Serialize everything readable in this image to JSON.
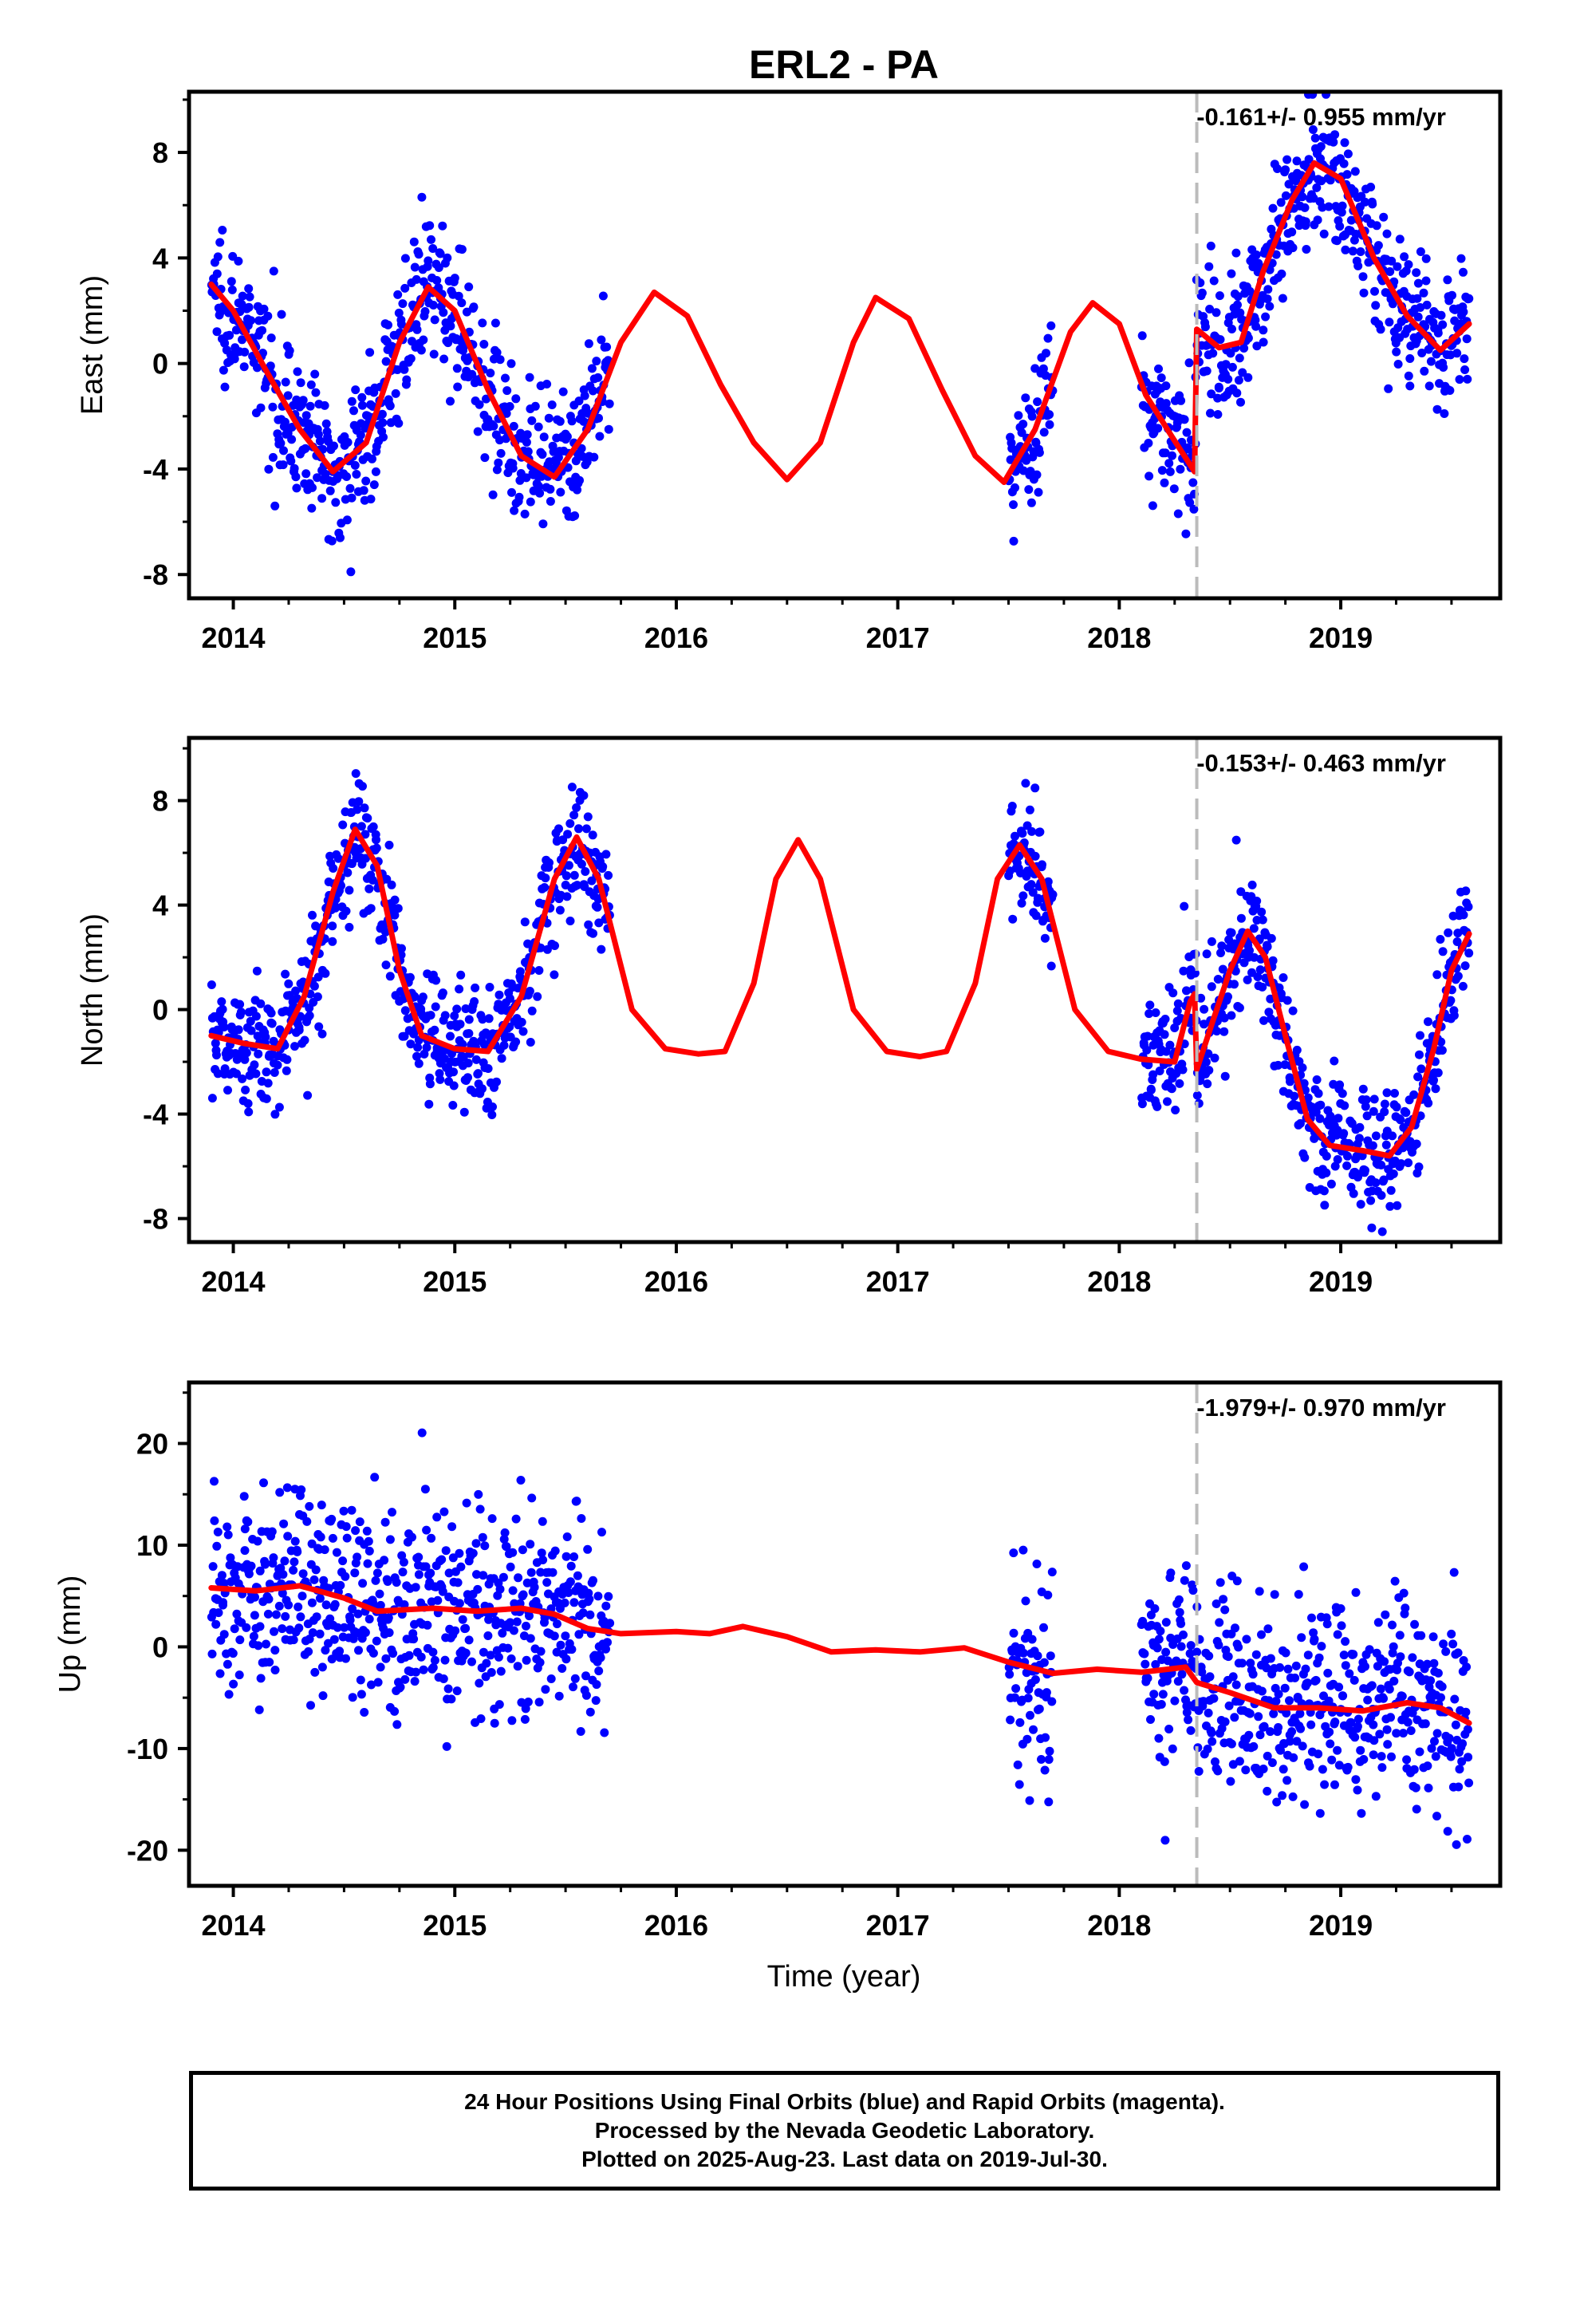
{
  "chart_data": {
    "type": "scatter",
    "title": "ERL2 - PA",
    "xlabel": "Time (year)",
    "colors": {
      "points": "#0000ff",
      "model": "#ff0000",
      "offset_line": "#bbbbbb",
      "frame": "#000000"
    },
    "xlim": [
      2013.8,
      2019.72
    ],
    "x_ticks": [
      "2014",
      "2015",
      "2016",
      "2017",
      "2018",
      "2019"
    ],
    "offset_epoch": 2018.35,
    "data_spans": [
      [
        2013.9,
        2015.7
      ],
      [
        2017.5,
        2017.7
      ],
      [
        2018.1,
        2019.58
      ]
    ],
    "grid": false,
    "panels": [
      {
        "name": "east",
        "ylabel": "East (mm)",
        "ylim": [
          -8.9,
          10.3
        ],
        "y_ticks": [
          "-8",
          "-4",
          "0",
          "4",
          "8"
        ],
        "y_tick_values": [
          -8,
          -4,
          0,
          4,
          8
        ],
        "rate": "-0.161+/- 0.955 mm/yr",
        "noise_sd": 1.3,
        "model": [
          [
            2013.9,
            3.0
          ],
          [
            2014.0,
            2.0
          ],
          [
            2014.15,
            -0.3
          ],
          [
            2014.3,
            -2.5
          ],
          [
            2014.45,
            -4.1
          ],
          [
            2014.6,
            -3.0
          ],
          [
            2014.75,
            0.8
          ],
          [
            2014.88,
            2.9
          ],
          [
            2015.0,
            2.0
          ],
          [
            2015.15,
            -1.0
          ],
          [
            2015.3,
            -3.5
          ],
          [
            2015.45,
            -4.3
          ],
          [
            2015.6,
            -2.5
          ],
          [
            2015.75,
            0.8
          ],
          [
            2015.9,
            2.7
          ],
          [
            2016.05,
            1.8
          ],
          [
            2016.2,
            -0.8
          ],
          [
            2016.35,
            -3.0
          ],
          [
            2016.5,
            -4.4
          ],
          [
            2016.65,
            -3.0
          ],
          [
            2016.8,
            0.8
          ],
          [
            2016.9,
            2.5
          ],
          [
            2017.05,
            1.7
          ],
          [
            2017.2,
            -1.0
          ],
          [
            2017.35,
            -3.5
          ],
          [
            2017.48,
            -4.5
          ],
          [
            2017.62,
            -2.5
          ],
          [
            2017.78,
            1.2
          ],
          [
            2017.88,
            2.3
          ],
          [
            2018.0,
            1.5
          ],
          [
            2018.12,
            -1.2
          ],
          [
            2018.24,
            -2.8
          ],
          [
            2018.34,
            -4.1
          ],
          [
            2018.35,
            1.3
          ],
          [
            2018.45,
            0.6
          ],
          [
            2018.55,
            0.8
          ],
          [
            2018.65,
            3.5
          ],
          [
            2018.78,
            6.2
          ],
          [
            2018.88,
            7.6
          ],
          [
            2019.0,
            7.0
          ],
          [
            2019.15,
            4.0
          ],
          [
            2019.3,
            1.8
          ],
          [
            2019.45,
            0.5
          ],
          [
            2019.58,
            1.5
          ]
        ]
      },
      {
        "name": "north",
        "ylabel": "North (mm)",
        "ylim": [
          -8.9,
          10.4
        ],
        "y_ticks": [
          "-8",
          "-4",
          "0",
          "4",
          "8"
        ],
        "y_tick_values": [
          -8,
          -4,
          0,
          4,
          8
        ],
        "rate": "-0.153+/- 0.463 mm/yr",
        "noise_sd": 1.2,
        "model": [
          [
            2013.9,
            -1.0
          ],
          [
            2014.05,
            -1.3
          ],
          [
            2014.2,
            -1.5
          ],
          [
            2014.32,
            0.5
          ],
          [
            2014.45,
            4.5
          ],
          [
            2014.55,
            6.9
          ],
          [
            2014.65,
            5.5
          ],
          [
            2014.75,
            1.5
          ],
          [
            2014.85,
            -1.0
          ],
          [
            2015.0,
            -1.5
          ],
          [
            2015.15,
            -1.6
          ],
          [
            2015.3,
            0.5
          ],
          [
            2015.45,
            5.0
          ],
          [
            2015.55,
            6.6
          ],
          [
            2015.65,
            5.0
          ],
          [
            2015.8,
            0.0
          ],
          [
            2015.95,
            -1.5
          ],
          [
            2016.1,
            -1.7
          ],
          [
            2016.22,
            -1.6
          ],
          [
            2016.35,
            1.0
          ],
          [
            2016.45,
            5.0
          ],
          [
            2016.55,
            6.5
          ],
          [
            2016.65,
            5.0
          ],
          [
            2016.8,
            0.0
          ],
          [
            2016.95,
            -1.6
          ],
          [
            2017.1,
            -1.8
          ],
          [
            2017.22,
            -1.6
          ],
          [
            2017.35,
            1.0
          ],
          [
            2017.45,
            5.0
          ],
          [
            2017.55,
            6.3
          ],
          [
            2017.65,
            5.0
          ],
          [
            2017.8,
            0.0
          ],
          [
            2017.95,
            -1.6
          ],
          [
            2018.1,
            -1.9
          ],
          [
            2018.25,
            -2.0
          ],
          [
            2018.32,
            0.3
          ],
          [
            2018.34,
            0.6
          ],
          [
            2018.35,
            -2.3
          ],
          [
            2018.42,
            -0.5
          ],
          [
            2018.5,
            1.5
          ],
          [
            2018.58,
            3.0
          ],
          [
            2018.66,
            2.0
          ],
          [
            2018.75,
            -1.0
          ],
          [
            2018.85,
            -4.2
          ],
          [
            2018.95,
            -5.2
          ],
          [
            2019.1,
            -5.4
          ],
          [
            2019.22,
            -5.6
          ],
          [
            2019.32,
            -4.5
          ],
          [
            2019.42,
            -1.5
          ],
          [
            2019.5,
            1.5
          ],
          [
            2019.58,
            2.9
          ]
        ]
      },
      {
        "name": "up",
        "ylabel": "Up (mm)",
        "ylim": [
          -23.5,
          26.0
        ],
        "y_ticks": [
          "-20",
          "-10",
          "0",
          "10",
          "20"
        ],
        "y_tick_values": [
          -20,
          -10,
          0,
          10,
          20
        ],
        "rate": "-1.979+/- 0.970 mm/yr",
        "noise_sd": 5.0,
        "model": [
          [
            2013.9,
            5.8
          ],
          [
            2014.1,
            5.5
          ],
          [
            2014.3,
            6.0
          ],
          [
            2014.5,
            4.8
          ],
          [
            2014.65,
            3.5
          ],
          [
            2014.9,
            3.8
          ],
          [
            2015.1,
            3.5
          ],
          [
            2015.3,
            3.8
          ],
          [
            2015.45,
            3.2
          ],
          [
            2015.6,
            1.8
          ],
          [
            2015.75,
            1.3
          ],
          [
            2016.0,
            1.5
          ],
          [
            2016.15,
            1.3
          ],
          [
            2016.3,
            2.0
          ],
          [
            2016.5,
            1.0
          ],
          [
            2016.7,
            -0.5
          ],
          [
            2016.9,
            -0.3
          ],
          [
            2017.1,
            -0.5
          ],
          [
            2017.3,
            -0.1
          ],
          [
            2017.5,
            -1.5
          ],
          [
            2017.7,
            -2.6
          ],
          [
            2017.9,
            -2.2
          ],
          [
            2018.1,
            -2.5
          ],
          [
            2018.3,
            -2.0
          ],
          [
            2018.35,
            -3.5
          ],
          [
            2018.5,
            -4.5
          ],
          [
            2018.7,
            -6.0
          ],
          [
            2018.9,
            -6.0
          ],
          [
            2019.1,
            -6.3
          ],
          [
            2019.3,
            -5.5
          ],
          [
            2019.45,
            -6.0
          ],
          [
            2019.58,
            -7.5
          ]
        ]
      }
    ]
  },
  "caption": {
    "line1": "24 Hour Positions Using Final Orbits (blue) and Rapid Orbits (magenta).",
    "line2": "Processed by the Nevada Geodetic Laboratory.",
    "line3": "Plotted on 2025-Aug-23. Last data on 2019-Jul-30."
  }
}
